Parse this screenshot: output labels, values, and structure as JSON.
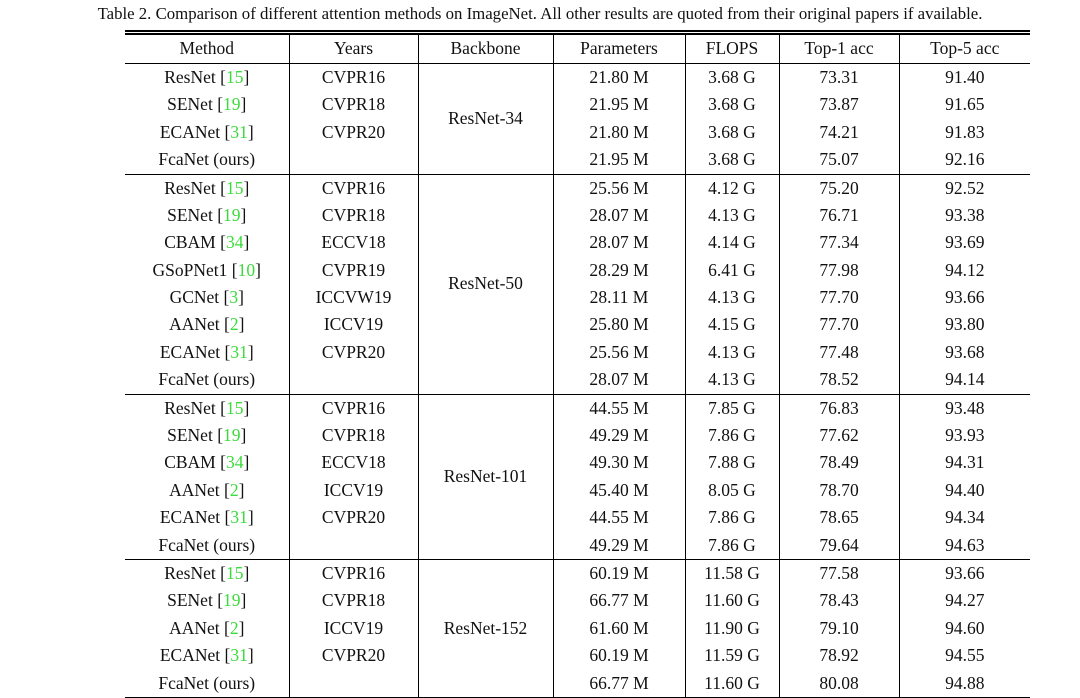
{
  "caption": "Table 2. Comparison of different attention methods on ImageNet. All other results are quoted from their original papers if available.",
  "colors": {
    "citation_green": "#3bdb3b",
    "text": "#111111",
    "background": "#ffffff",
    "rule": "#000000"
  },
  "table": {
    "headers": [
      "Method",
      "Years",
      "Backbone",
      "Parameters",
      "FLOPS",
      "Top-1 acc",
      "Top-5 acc"
    ],
    "groups": [
      {
        "backbone": "ResNet-34",
        "rows": [
          {
            "method": "ResNet",
            "cite": "15",
            "years": "CVPR16",
            "parameters": "21.80 M",
            "flops": "3.68 G",
            "top1": "73.31",
            "top5": "91.40",
            "bold": false
          },
          {
            "method": "SENet",
            "cite": "19",
            "years": "CVPR18",
            "parameters": "21.95 M",
            "flops": "3.68 G",
            "top1": "73.87",
            "top5": "91.65",
            "bold": false
          },
          {
            "method": "ECANet",
            "cite": "31",
            "years": "CVPR20",
            "parameters": "21.80 M",
            "flops": "3.68 G",
            "top1": "74.21",
            "top5": "91.83",
            "bold": false
          },
          {
            "method": "FcaNet (ours)",
            "cite": null,
            "years": "",
            "parameters": "21.95 M",
            "flops": "3.68 G",
            "top1": "75.07",
            "top5": "92.16",
            "bold": true
          }
        ]
      },
      {
        "backbone": "ResNet-50",
        "rows": [
          {
            "method": "ResNet",
            "cite": "15",
            "years": "CVPR16",
            "parameters": "25.56 M",
            "flops": "4.12 G",
            "top1": "75.20",
            "top5": "92.52",
            "bold": false
          },
          {
            "method": "SENet",
            "cite": "19",
            "years": "CVPR18",
            "parameters": "28.07 M",
            "flops": "4.13 G",
            "top1": "76.71",
            "top5": "93.38",
            "bold": false
          },
          {
            "method": "CBAM",
            "cite": "34",
            "years": "ECCV18",
            "parameters": "28.07 M",
            "flops": "4.14 G",
            "top1": "77.34",
            "top5": "93.69",
            "bold": false
          },
          {
            "method": "GSoPNet1",
            "cite": "10",
            "years": "CVPR19",
            "parameters": "28.29 M",
            "flops": "6.41 G",
            "top1": "77.98",
            "top5": "94.12",
            "bold": false
          },
          {
            "method": "GCNet",
            "cite": "3",
            "years": "ICCVW19",
            "parameters": "28.11 M",
            "flops": "4.13 G",
            "top1": "77.70",
            "top5": "93.66",
            "bold": false
          },
          {
            "method": "AANet",
            "cite": "2",
            "years": "ICCV19",
            "parameters": "25.80 M",
            "flops": "4.15 G",
            "top1": "77.70",
            "top5": "93.80",
            "bold": false
          },
          {
            "method": "ECANet",
            "cite": "31",
            "years": "CVPR20",
            "parameters": "25.56 M",
            "flops": "4.13 G",
            "top1": "77.48",
            "top5": "93.68",
            "bold": false
          },
          {
            "method": "FcaNet (ours)",
            "cite": null,
            "years": "",
            "parameters": "28.07 M",
            "flops": "4.13 G",
            "top1": "78.52",
            "top5": "94.14",
            "bold": true
          }
        ]
      },
      {
        "backbone": "ResNet-101",
        "rows": [
          {
            "method": "ResNet",
            "cite": "15",
            "years": "CVPR16",
            "parameters": "44.55 M",
            "flops": "7.85 G",
            "top1": "76.83",
            "top5": "93.48",
            "bold": false
          },
          {
            "method": "SENet",
            "cite": "19",
            "years": "CVPR18",
            "parameters": "49.29 M",
            "flops": "7.86 G",
            "top1": "77.62",
            "top5": "93.93",
            "bold": false
          },
          {
            "method": "CBAM",
            "cite": "34",
            "years": "ECCV18",
            "parameters": "49.30 M",
            "flops": "7.88 G",
            "top1": "78.49",
            "top5": "94.31",
            "bold": false
          },
          {
            "method": "AANet",
            "cite": "2",
            "years": "ICCV19",
            "parameters": "45.40 M",
            "flops": "8.05 G",
            "top1": "78.70",
            "top5": "94.40",
            "bold": false
          },
          {
            "method": "ECANet",
            "cite": "31",
            "years": "CVPR20",
            "parameters": "44.55 M",
            "flops": "7.86 G",
            "top1": "78.65",
            "top5": "94.34",
            "bold": false
          },
          {
            "method": "FcaNet (ours)",
            "cite": null,
            "years": "",
            "parameters": "49.29 M",
            "flops": "7.86 G",
            "top1": "79.64",
            "top5": "94.63",
            "bold": true
          }
        ]
      },
      {
        "backbone": "ResNet-152",
        "rows": [
          {
            "method": "ResNet",
            "cite": "15",
            "years": "CVPR16",
            "parameters": "60.19 M",
            "flops": "11.58 G",
            "top1": "77.58",
            "top5": "93.66",
            "bold": false
          },
          {
            "method": "SENet",
            "cite": "19",
            "years": "CVPR18",
            "parameters": "66.77 M",
            "flops": "11.60 G",
            "top1": "78.43",
            "top5": "94.27",
            "bold": false
          },
          {
            "method": "AANet",
            "cite": "2",
            "years": "ICCV19",
            "parameters": "61.60 M",
            "flops": "11.90 G",
            "top1": "79.10",
            "top5": "94.60",
            "bold": false
          },
          {
            "method": "ECANet",
            "cite": "31",
            "years": "CVPR20",
            "parameters": "60.19 M",
            "flops": "11.59 G",
            "top1": "78.92",
            "top5": "94.55",
            "bold": false
          },
          {
            "method": "FcaNet (ours)",
            "cite": null,
            "years": "",
            "parameters": "66.77 M",
            "flops": "11.60 G",
            "top1": "80.08",
            "top5": "94.88",
            "bold": true
          }
        ]
      }
    ]
  }
}
